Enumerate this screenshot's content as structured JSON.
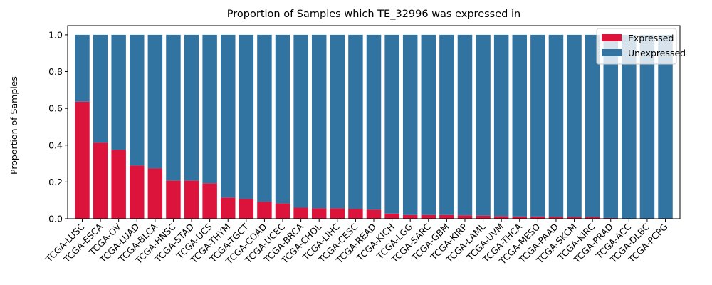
{
  "chart_data": {
    "type": "bar",
    "stacked": true,
    "title": "Proportion of Samples which TE_32996 was expressed in",
    "xlabel": "",
    "ylabel": "Proportion of Samples",
    "ylim": [
      0,
      1.05
    ],
    "yticks": [
      "0.0",
      "0.2",
      "0.4",
      "0.6",
      "0.8",
      "1.0"
    ],
    "ytick_values": [
      0,
      0.2,
      0.4,
      0.6,
      0.8,
      1.0
    ],
    "legend_position": "top-right",
    "grid": false,
    "categories": [
      "TCGA-LUSC",
      "TCGA-ESCA",
      "TCGA-OV",
      "TCGA-LUAD",
      "TCGA-BLCA",
      "TCGA-HNSC",
      "TCGA-STAD",
      "TCGA-UCS",
      "TCGA-THYM",
      "TCGA-TGCT",
      "TCGA-COAD",
      "TCGA-UCEC",
      "TCGA-BRCA",
      "TCGA-CHOL",
      "TCGA-LIHC",
      "TCGA-CESC",
      "TCGA-READ",
      "TCGA-KICH",
      "TCGA-LGG",
      "TCGA-SARC",
      "TCGA-GBM",
      "TCGA-KIRP",
      "TCGA-LAML",
      "TCGA-UVM",
      "TCGA-THCA",
      "TCGA-MESO",
      "TCGA-PAAD",
      "TCGA-SKCM",
      "TCGA-KIRC",
      "TCGA-PRAD",
      "TCGA-ACC",
      "TCGA-DLBC",
      "TCGA-PCPG"
    ],
    "series": [
      {
        "name": "Expressed",
        "color": "#dc143c",
        "values": [
          0.636,
          0.413,
          0.375,
          0.289,
          0.273,
          0.208,
          0.208,
          0.193,
          0.115,
          0.107,
          0.092,
          0.083,
          0.06,
          0.056,
          0.056,
          0.053,
          0.049,
          0.028,
          0.02,
          0.02,
          0.02,
          0.018,
          0.016,
          0.014,
          0.012,
          0.012,
          0.011,
          0.01,
          0.01,
          0.004,
          0.0,
          0.0,
          0.0
        ]
      },
      {
        "name": "Unexpressed",
        "color": "#3274a1",
        "values": [
          0.364,
          0.587,
          0.625,
          0.711,
          0.727,
          0.792,
          0.792,
          0.807,
          0.885,
          0.893,
          0.908,
          0.917,
          0.94,
          0.944,
          0.944,
          0.947,
          0.951,
          0.972,
          0.98,
          0.98,
          0.98,
          0.982,
          0.984,
          0.986,
          0.988,
          0.988,
          0.989,
          0.99,
          0.99,
          0.996,
          1.0,
          1.0,
          1.0
        ]
      }
    ]
  }
}
